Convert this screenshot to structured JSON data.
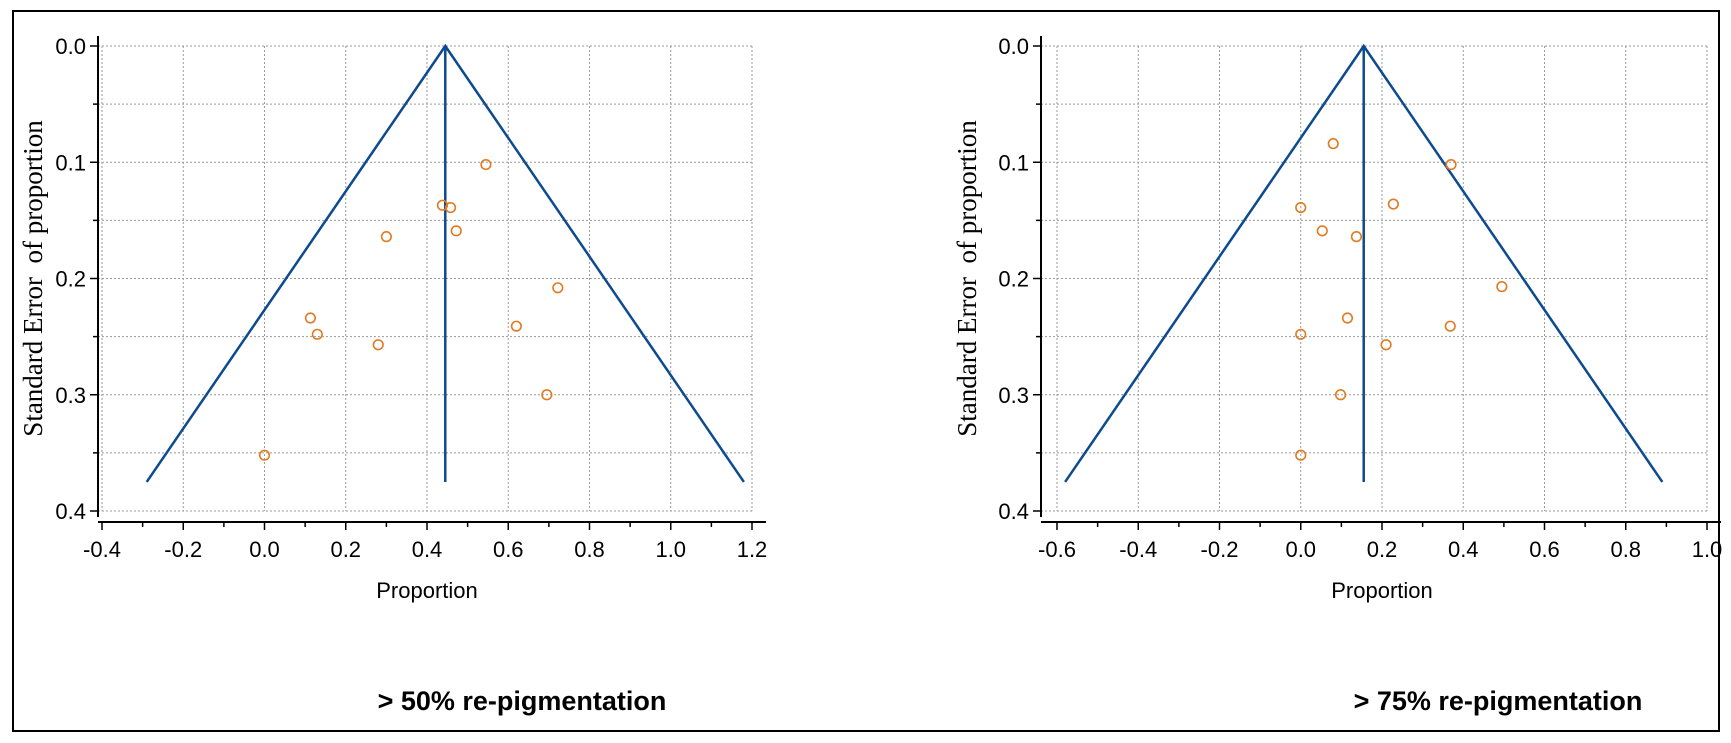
{
  "colors": {
    "funnel": "#0d4a8f",
    "points": "#e07b22",
    "grid": "#9a9a9a",
    "axis": "#000000"
  },
  "chart_data": [
    {
      "type": "scatter",
      "caption": "> 50% re-pigmentation",
      "xlabel": "Proportion",
      "ylabel": "Standard Error  of proportion",
      "xlim": [
        -0.4,
        1.2
      ],
      "ylim": [
        0.0,
        0.4
      ],
      "y_inverted": true,
      "xticks": [
        -0.4,
        -0.2,
        0.0,
        0.2,
        0.4,
        0.6,
        0.8,
        1.0,
        1.2
      ],
      "yticks": [
        0.0,
        0.1,
        0.2,
        0.3,
        0.4
      ],
      "grid": true,
      "pooled_estimate": 0.445,
      "funnel": {
        "apex": [
          0.445,
          0.0
        ],
        "left_base": [
          -0.29,
          0.375
        ],
        "right_base": [
          1.18,
          0.375
        ]
      },
      "points": [
        {
          "x": 0.545,
          "y": 0.102
        },
        {
          "x": 0.438,
          "y": 0.137
        },
        {
          "x": 0.458,
          "y": 0.139
        },
        {
          "x": 0.472,
          "y": 0.159
        },
        {
          "x": 0.3,
          "y": 0.164
        },
        {
          "x": 0.722,
          "y": 0.208
        },
        {
          "x": 0.113,
          "y": 0.234
        },
        {
          "x": 0.13,
          "y": 0.248
        },
        {
          "x": 0.62,
          "y": 0.241
        },
        {
          "x": 0.28,
          "y": 0.257
        },
        {
          "x": 0.695,
          "y": 0.3
        },
        {
          "x": 0.0,
          "y": 0.352
        }
      ]
    },
    {
      "type": "scatter",
      "caption": "> 75% re-pigmentation",
      "xlabel": "Proportion",
      "ylabel": "Standard Error  of proportion",
      "xlim": [
        -0.6,
        1.0
      ],
      "ylim": [
        0.0,
        0.4
      ],
      "y_inverted": true,
      "xticks": [
        -0.6,
        -0.4,
        -0.2,
        0.0,
        0.2,
        0.4,
        0.6,
        0.8,
        1.0
      ],
      "yticks": [
        0.0,
        0.1,
        0.2,
        0.3,
        0.4
      ],
      "grid": true,
      "pooled_estimate": 0.155,
      "funnel": {
        "apex": [
          0.155,
          0.0
        ],
        "left_base": [
          -0.58,
          0.375
        ],
        "right_base": [
          0.89,
          0.375
        ]
      },
      "points": [
        {
          "x": 0.08,
          "y": 0.084
        },
        {
          "x": 0.37,
          "y": 0.102
        },
        {
          "x": 0.0,
          "y": 0.139
        },
        {
          "x": 0.228,
          "y": 0.136
        },
        {
          "x": 0.053,
          "y": 0.159
        },
        {
          "x": 0.137,
          "y": 0.164
        },
        {
          "x": 0.495,
          "y": 0.207
        },
        {
          "x": 0.115,
          "y": 0.234
        },
        {
          "x": 0.0,
          "y": 0.248
        },
        {
          "x": 0.368,
          "y": 0.241
        },
        {
          "x": 0.21,
          "y": 0.257
        },
        {
          "x": 0.098,
          "y": 0.3
        },
        {
          "x": 0.0,
          "y": 0.352
        }
      ]
    }
  ]
}
